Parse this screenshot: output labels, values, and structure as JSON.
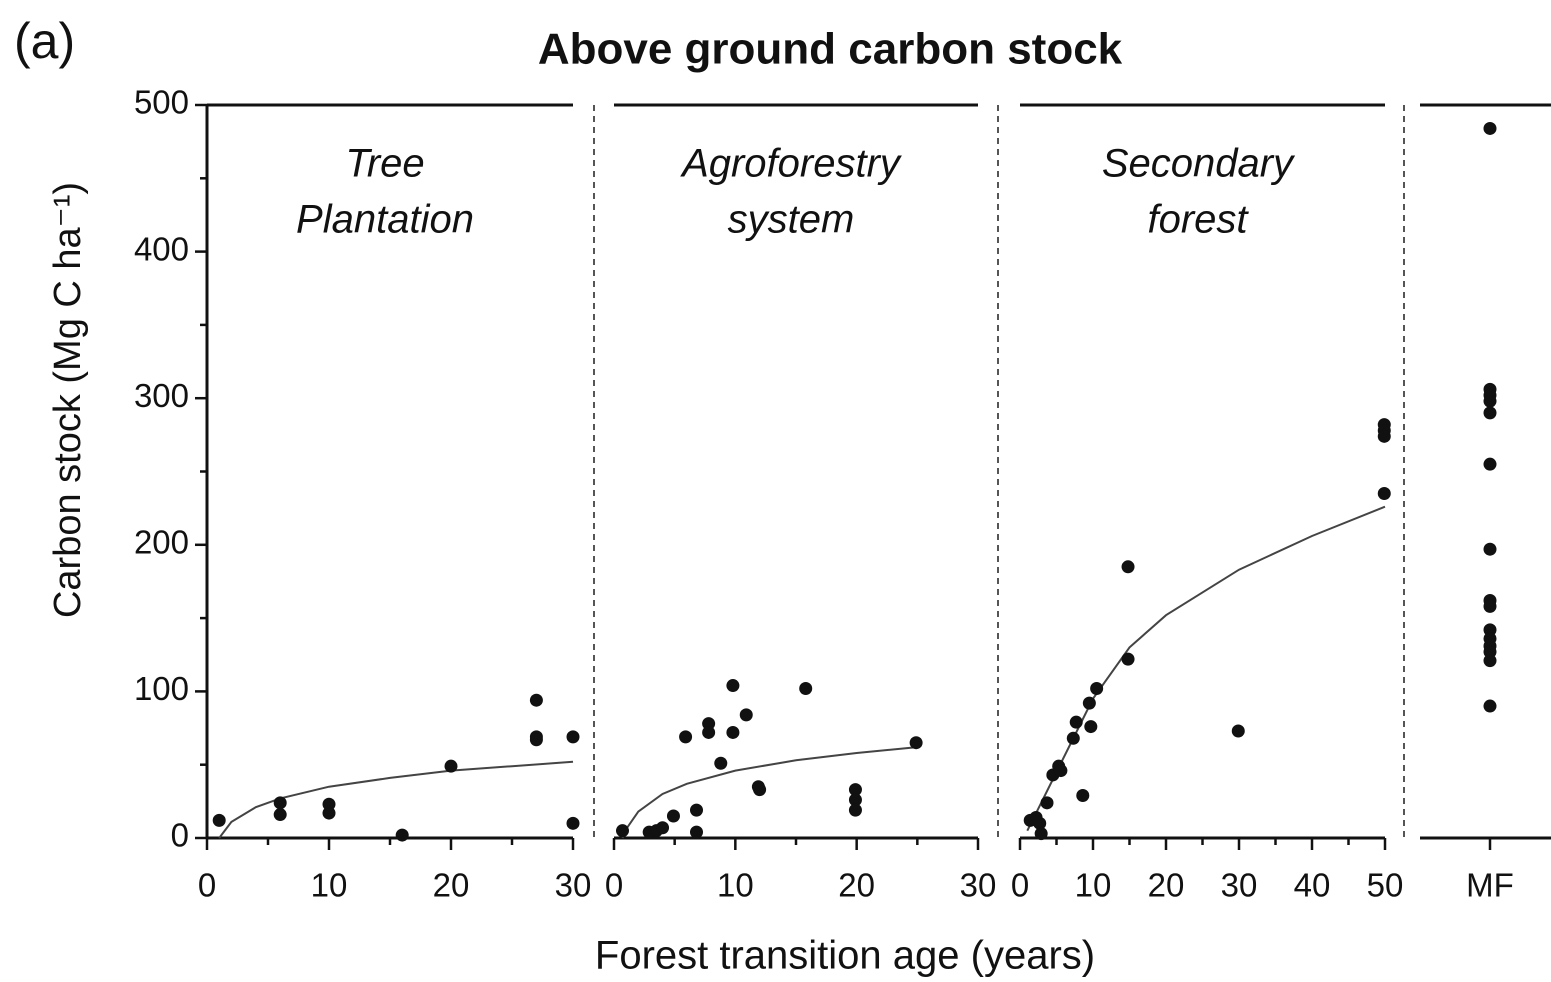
{
  "figure": {
    "label": "(a)",
    "title": "Above ground carbon stock",
    "y_label": "Carbon stock (Mg C ha⁻¹)",
    "x_label": "Forest transition age (years)"
  },
  "chart_data": [
    {
      "type": "scatter",
      "title": [
        "Tree",
        "Plantation"
      ],
      "x": [
        1,
        6,
        6,
        10,
        10,
        16,
        20,
        27,
        27,
        27,
        30,
        30
      ],
      "values": [
        12,
        24,
        16,
        23,
        17,
        2,
        49,
        94,
        69,
        67,
        69,
        10
      ],
      "fit": {
        "x": [
          1,
          2,
          4,
          6,
          10,
          15,
          20,
          25,
          30
        ],
        "values": [
          0,
          11,
          21,
          27,
          35,
          41,
          46,
          49,
          52
        ]
      },
      "xlim": [
        0,
        30
      ],
      "xticks": [
        0,
        10,
        20,
        30
      ],
      "xminor": [
        5,
        15,
        25
      ],
      "ylim": [
        0,
        500
      ],
      "yticks": [
        0,
        100,
        200,
        300,
        400,
        500
      ],
      "yminor": [
        50,
        150,
        250,
        350,
        450
      ]
    },
    {
      "type": "scatter",
      "title": [
        "Agroforestry",
        "system"
      ],
      "x": [
        0.7,
        2.9,
        3.5,
        4,
        4.9,
        5.9,
        6.8,
        6.8,
        7.8,
        7.8,
        8.8,
        9.8,
        9.8,
        10.9,
        11.9,
        12,
        15.8,
        19.9,
        19.9,
        19.9,
        24.9
      ],
      "values": [
        5,
        4,
        5,
        7,
        15,
        69,
        19,
        4,
        78,
        72,
        51,
        104,
        72,
        84,
        35,
        33,
        102,
        33,
        26,
        19,
        65
      ],
      "fit": {
        "x": [
          0.7,
          1,
          2,
          4,
          6,
          10,
          15,
          20,
          25
        ],
        "values": [
          0,
          6,
          18,
          30,
          37,
          46,
          53,
          58,
          62
        ]
      },
      "xlim": [
        0,
        30
      ],
      "xticks": [
        0,
        10,
        20,
        30
      ],
      "xminor": [
        5,
        15,
        25
      ],
      "ylim": [
        0,
        500
      ]
    },
    {
      "type": "scatter",
      "title": [
        "Secondary",
        "forest"
      ],
      "x": [
        1.4,
        2.2,
        2.7,
        2.9,
        3.7,
        4.5,
        5.3,
        5.6,
        7.3,
        7.7,
        8.6,
        9.5,
        9.7,
        10.5,
        14.8,
        14.8,
        29.9,
        49.9,
        49.9,
        49.9,
        49.9
      ],
      "values": [
        12,
        14,
        10,
        3,
        24,
        43,
        49,
        46,
        68,
        79,
        29,
        92,
        76,
        102,
        185,
        122,
        73,
        282,
        278,
        274,
        235
      ],
      "fit": {
        "x": [
          1,
          3,
          5,
          8,
          10,
          15,
          20,
          30,
          40,
          50
        ],
        "values": [
          5,
          25,
          45,
          75,
          95,
          130,
          152,
          183,
          206,
          226
        ]
      },
      "xlim": [
        0,
        50
      ],
      "xticks": [
        0,
        10,
        20,
        30,
        40,
        50
      ],
      "xminor": [
        5,
        15,
        25,
        35,
        45
      ],
      "ylim": [
        0,
        500
      ]
    },
    {
      "type": "strip",
      "categories": [
        "MF"
      ],
      "values": [
        484,
        306,
        302,
        298,
        290,
        255,
        197,
        162,
        158,
        142,
        136,
        131,
        127,
        121,
        90
      ],
      "ylim": [
        0,
        500
      ]
    }
  ]
}
